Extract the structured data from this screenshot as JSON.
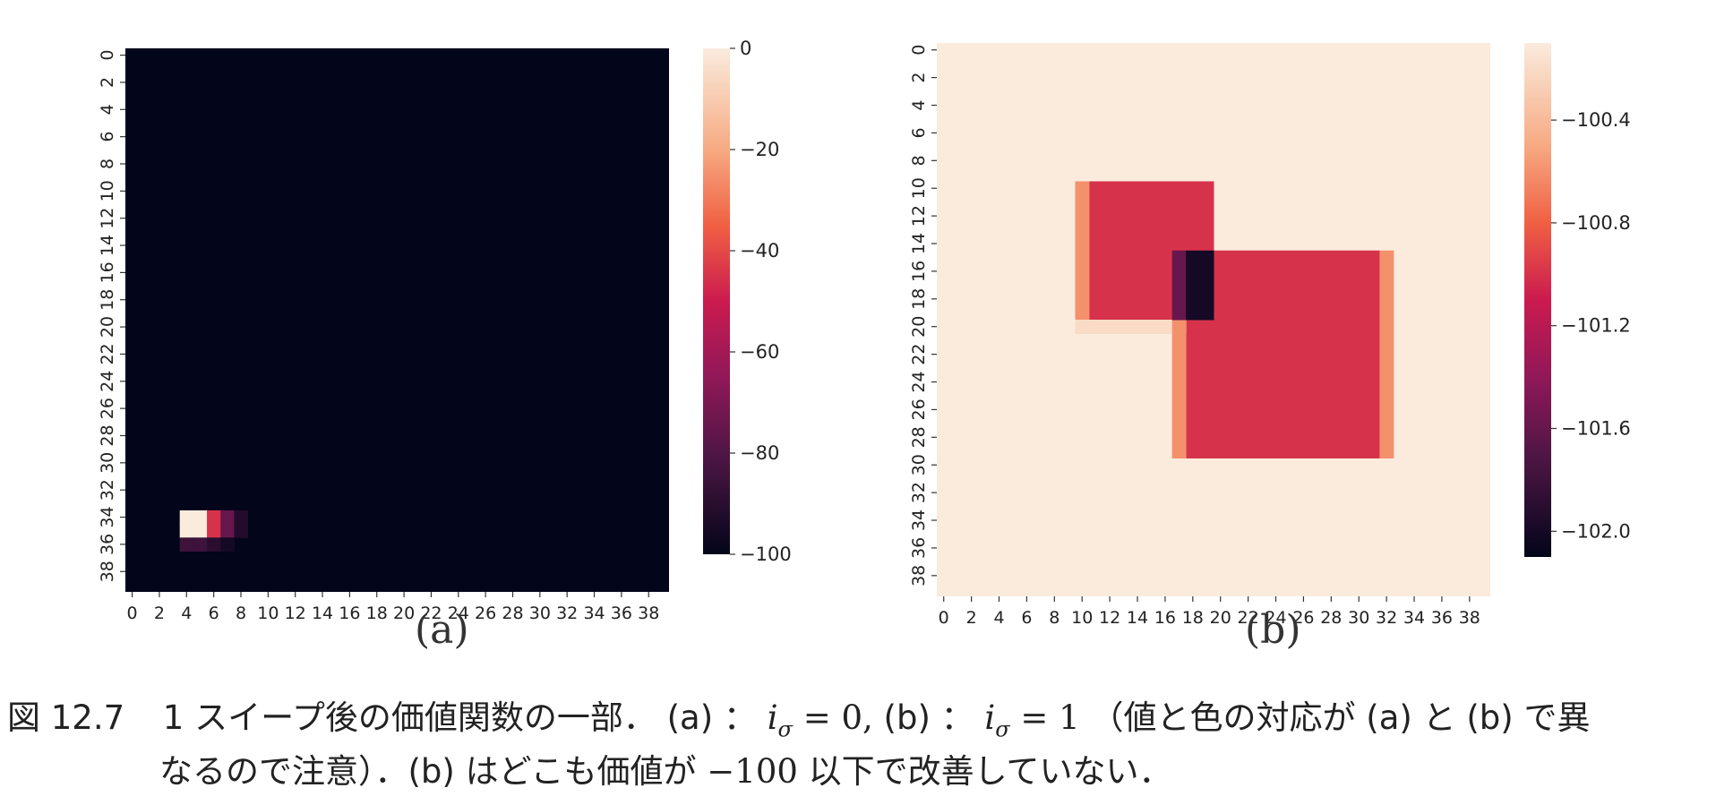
{
  "chart_data": [
    {
      "type": "heatmap",
      "panel": "(a)",
      "grid_size": 40,
      "xticks": [
        0,
        2,
        4,
        6,
        8,
        10,
        12,
        14,
        16,
        18,
        20,
        22,
        24,
        26,
        28,
        30,
        32,
        34,
        36,
        38
      ],
      "yticks": [
        0,
        2,
        4,
        6,
        8,
        10,
        12,
        14,
        16,
        18,
        20,
        22,
        24,
        26,
        28,
        30,
        32,
        34,
        36,
        38
      ],
      "background_value": -100,
      "cells": [
        {
          "x": 4,
          "y": 34,
          "v": 0
        },
        {
          "x": 5,
          "y": 34,
          "v": 0
        },
        {
          "x": 4,
          "y": 35,
          "v": 0
        },
        {
          "x": 5,
          "y": 35,
          "v": 0
        },
        {
          "x": 6,
          "y": 34,
          "v": -45
        },
        {
          "x": 6,
          "y": 35,
          "v": -45
        },
        {
          "x": 7,
          "y": 34,
          "v": -75
        },
        {
          "x": 7,
          "y": 35,
          "v": -75
        },
        {
          "x": 8,
          "y": 34,
          "v": -92
        },
        {
          "x": 8,
          "y": 35,
          "v": -92
        },
        {
          "x": 4,
          "y": 36,
          "v": -85
        },
        {
          "x": 5,
          "y": 36,
          "v": -85
        },
        {
          "x": 6,
          "y": 36,
          "v": -90
        },
        {
          "x": 7,
          "y": 36,
          "v": -95
        }
      ],
      "colorbar": {
        "min": -100,
        "max": 0,
        "ticks": [
          0,
          -20,
          -40,
          -60,
          -80,
          -100
        ]
      }
    },
    {
      "type": "heatmap",
      "panel": "(b)",
      "grid_size": 40,
      "xticks": [
        0,
        2,
        4,
        6,
        8,
        10,
        12,
        14,
        16,
        18,
        20,
        22,
        24,
        26,
        28,
        30,
        32,
        34,
        36,
        38
      ],
      "yticks": [
        0,
        2,
        4,
        6,
        8,
        10,
        12,
        14,
        16,
        18,
        20,
        22,
        24,
        26,
        28,
        30,
        32,
        34,
        36,
        38
      ],
      "background_value": -100.1,
      "rects": [
        {
          "x0": 10,
          "x1": 19,
          "y0": 10,
          "y1": 19,
          "v": -101.0
        },
        {
          "x0": 18,
          "x1": 31,
          "y0": 15,
          "y1": 29,
          "v": -101.0
        },
        {
          "x0": 10,
          "x1": 10,
          "y0": 10,
          "y1": 19,
          "v": -100.6
        },
        {
          "x0": 10,
          "x1": 17,
          "y0": 20,
          "y1": 20,
          "v": -100.2
        },
        {
          "x0": 32,
          "x1": 32,
          "y0": 15,
          "y1": 29,
          "v": -100.6
        },
        {
          "x0": 17,
          "x1": 17,
          "y0": 20,
          "y1": 29,
          "v": -100.6
        },
        {
          "x0": 17,
          "x1": 17,
          "y0": 15,
          "y1": 19,
          "v": -101.6
        },
        {
          "x0": 18,
          "x1": 19,
          "y0": 15,
          "y1": 19,
          "v": -102.0
        }
      ],
      "colorbar": {
        "min": -102.1,
        "max": -100.1,
        "ticks": [
          -100.4,
          -100.8,
          -101.2,
          -101.6,
          -102.0
        ]
      }
    }
  ],
  "panel_labels": {
    "a": "(a)",
    "b": "(b)"
  },
  "caption": {
    "number": "図 12.7",
    "part1": "1 スイープ後の価値関数の一部．",
    "a_label": "(a) ：",
    "a_math": "i",
    "a_math_sub": "σ",
    "a_math_eq": " = 0,",
    "b_label": "(b) ：",
    "b_math": "i",
    "b_math_sub": "σ",
    "b_math_eq": " = 1",
    "part2": "（値と色の対応が (a) と (b) で異",
    "line2_pre": "なるので注意）．(b) はどこも価値が",
    "line2_math": "−100",
    "line2_post": "以下で改善していない．"
  }
}
